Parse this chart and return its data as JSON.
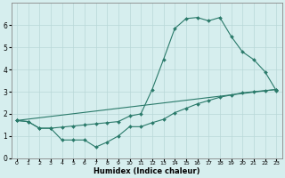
{
  "xlabel": "Humidex (Indice chaleur)",
  "bg_color": "#d6eeee",
  "grid_color": "#b8d8d8",
  "line_color": "#2a7a6a",
  "xlim": [
    -0.5,
    23.5
  ],
  "ylim": [
    0,
    7
  ],
  "x_ticks": [
    0,
    1,
    2,
    3,
    4,
    5,
    6,
    7,
    8,
    9,
    10,
    11,
    12,
    13,
    14,
    15,
    16,
    17,
    18,
    19,
    20,
    21,
    22,
    23
  ],
  "y_ticks": [
    0,
    1,
    2,
    3,
    4,
    5,
    6
  ],
  "line1_x": [
    0,
    1,
    2,
    3,
    4,
    5,
    6,
    7,
    8,
    9,
    10,
    11,
    12,
    13,
    14,
    15,
    16,
    17,
    18,
    19,
    20,
    21,
    22,
    23
  ],
  "line1_y": [
    1.7,
    1.65,
    1.35,
    1.35,
    0.82,
    0.82,
    0.82,
    0.5,
    0.72,
    1.0,
    1.42,
    1.42,
    1.6,
    1.75,
    2.05,
    2.25,
    2.45,
    2.6,
    2.75,
    2.85,
    2.95,
    3.0,
    3.05,
    3.1
  ],
  "line2_x": [
    0,
    23
  ],
  "line2_y": [
    1.7,
    3.1
  ],
  "line3_x": [
    0,
    1,
    2,
    3,
    4,
    5,
    6,
    7,
    8,
    9,
    10,
    11,
    12,
    13,
    14,
    15,
    16,
    17,
    18,
    19,
    20,
    21,
    22,
    23
  ],
  "line3_y": [
    1.7,
    1.65,
    1.35,
    1.35,
    1.4,
    1.45,
    1.5,
    1.55,
    1.6,
    1.65,
    1.9,
    2.0,
    3.1,
    4.45,
    5.85,
    6.3,
    6.35,
    6.2,
    6.35,
    5.5,
    4.8,
    4.45,
    3.9,
    3.05
  ]
}
